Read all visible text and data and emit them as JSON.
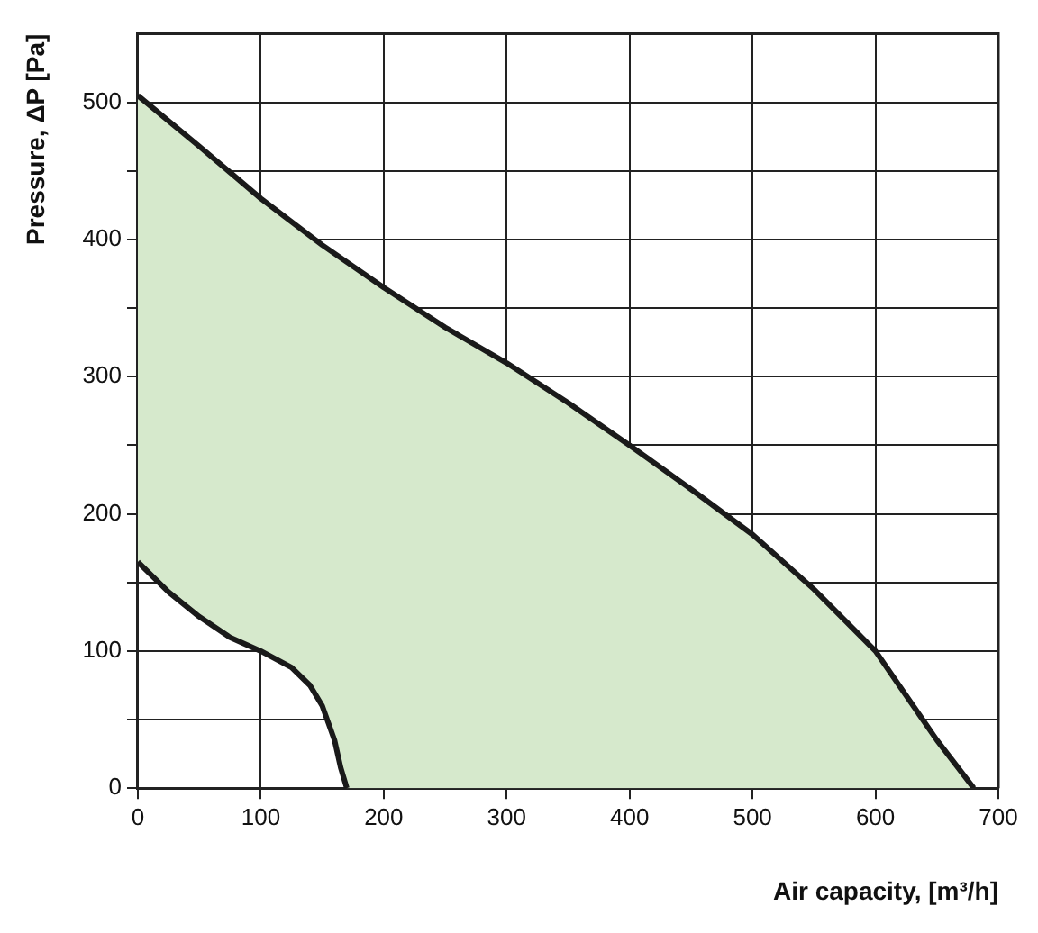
{
  "chart_data": {
    "type": "area",
    "xlabel": "Air capacity, [m³/h]",
    "ylabel": "Pressure, ΔP [Pa]",
    "series": [
      {
        "type": "area",
        "color": "#d6e9cc",
        "x": [
          0,
          50,
          100,
          150,
          200,
          250,
          300,
          350,
          400,
          450,
          500,
          550,
          600,
          650,
          680
        ],
        "values": [
          505,
          468,
          430,
          396,
          365,
          336,
          310,
          281,
          250,
          218,
          185,
          145,
          100,
          35,
          0
        ]
      },
      {
        "type": "line",
        "color": "#1a1a1a",
        "x": [
          0,
          25,
          50,
          75,
          100,
          125,
          140,
          150,
          160,
          165,
          170
        ],
        "values": [
          165,
          143,
          125,
          110,
          100,
          88,
          75,
          60,
          35,
          15,
          0
        ]
      }
    ],
    "xlim": [
      0,
      700
    ],
    "xticks": [
      0,
      100,
      200,
      300,
      400,
      500,
      600,
      700
    ],
    "ylim": [
      0,
      550
    ],
    "yticks": [
      0,
      {
        "value": 50,
        "label": null
      },
      100,
      {
        "value": 150,
        "label": null
      },
      200,
      {
        "value": 250,
        "label": null
      },
      300,
      {
        "value": 350,
        "label": null
      },
      400,
      {
        "value": 450,
        "label": null
      },
      500
    ],
    "grid": true,
    "legend": false,
    "marker": "none",
    "line_style": "solid"
  }
}
